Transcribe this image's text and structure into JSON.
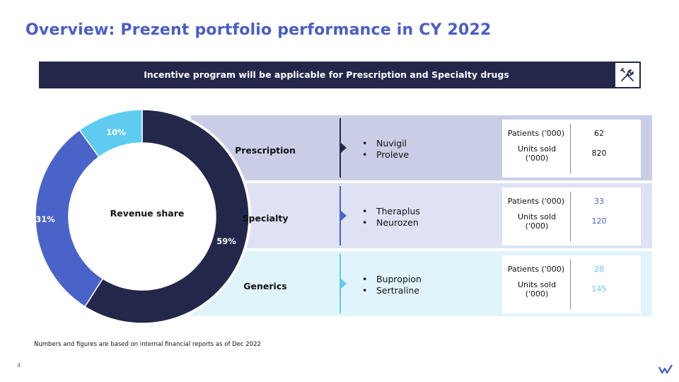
{
  "title": "Overview: Prezent portfolio performance in CY 2022",
  "banner": {
    "text": "Incentive program will be applicable for Prescription and Specialty drugs",
    "icon": "tools-icon"
  },
  "chart_data": {
    "type": "pie",
    "center_label": "Revenue share",
    "slices": [
      {
        "category": "Prescription",
        "value": 59,
        "label": "59%",
        "color": "#23274a"
      },
      {
        "category": "Specialty",
        "value": 31,
        "label": "31%",
        "color": "#4a63c8"
      },
      {
        "category": "Generics",
        "value": 10,
        "label": "10%",
        "color": "#5fcbf1"
      }
    ]
  },
  "segments": [
    {
      "name": "Prescription",
      "drugs": [
        "Nuvigil",
        "Proleve"
      ],
      "patients_label": "Patients ('000)",
      "units_label": "Units sold ('000)",
      "patients": "62",
      "units": "820",
      "value_color": "#111111",
      "band_color": "#c9cde6",
      "accent": "#23274a"
    },
    {
      "name": "Specialty",
      "drugs": [
        "Theraplus",
        "Neurozen"
      ],
      "patients_label": "Patients ('000)",
      "units_label": "Units sold ('000)",
      "patients": "33",
      "units": "120",
      "value_color": "#4a63c8",
      "band_color": "#dfe2f4",
      "accent": "#4a63c8"
    },
    {
      "name": "Generics",
      "drugs": [
        "Bupropion",
        "Sertraline"
      ],
      "patients_label": "Patients ('000)",
      "units_label": "Units sold ('000)",
      "patients": "28",
      "units": "145",
      "value_color": "#5fcbf1",
      "band_color": "#e0f4fc",
      "accent": "#5fcbf1"
    }
  ],
  "footnote": "Numbers and figures are based on internal financial reports as of Dec 2022",
  "page_number": "4"
}
